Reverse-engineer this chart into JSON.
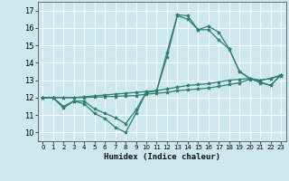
{
  "xlabel": "Humidex (Indice chaleur)",
  "bg_color": "#cce8ec",
  "grid_color": "#ffffff",
  "line_color": "#2e7d6e",
  "xlim": [
    -0.5,
    23.5
  ],
  "ylim": [
    9.5,
    17.5
  ],
  "yticks": [
    10,
    11,
    12,
    13,
    14,
    15,
    16,
    17
  ],
  "xticks": [
    0,
    1,
    2,
    3,
    4,
    5,
    6,
    7,
    8,
    9,
    10,
    11,
    12,
    13,
    14,
    15,
    16,
    17,
    18,
    19,
    20,
    21,
    22,
    23
  ],
  "series": [
    {
      "x": [
        0,
        1,
        2,
        3,
        4,
        5,
        6,
        7,
        8,
        9,
        10,
        11,
        12,
        13,
        14,
        15,
        16,
        17,
        18,
        19,
        20,
        21,
        22,
        23
      ],
      "y": [
        12.0,
        12.0,
        11.4,
        11.8,
        11.65,
        11.1,
        10.8,
        10.3,
        10.0,
        11.1,
        12.3,
        12.4,
        14.6,
        16.75,
        16.7,
        15.9,
        16.1,
        15.75,
        14.8,
        13.5,
        13.1,
        12.85,
        12.7,
        13.3
      ]
    },
    {
      "x": [
        0,
        1,
        2,
        3,
        4,
        5,
        6,
        7,
        8,
        9,
        10,
        11,
        12,
        13,
        14,
        15,
        16,
        17,
        18,
        19,
        20,
        21,
        22,
        23
      ],
      "y": [
        12.0,
        12.0,
        11.5,
        11.8,
        11.8,
        11.35,
        11.1,
        10.85,
        10.5,
        11.3,
        12.3,
        12.4,
        14.35,
        16.7,
        16.5,
        15.9,
        15.9,
        15.3,
        14.8,
        13.5,
        13.1,
        12.9,
        12.7,
        13.3
      ]
    },
    {
      "x": [
        0,
        1,
        2,
        3,
        4,
        5,
        6,
        7,
        8,
        9,
        10,
        11,
        12,
        13,
        14,
        15,
        16,
        17,
        18,
        19,
        20,
        21,
        22,
        23
      ],
      "y": [
        12.0,
        12.0,
        12.0,
        12.0,
        12.05,
        12.1,
        12.15,
        12.2,
        12.25,
        12.3,
        12.35,
        12.4,
        12.5,
        12.6,
        12.7,
        12.75,
        12.8,
        12.9,
        13.0,
        13.05,
        13.1,
        13.0,
        13.1,
        13.3
      ]
    },
    {
      "x": [
        0,
        1,
        2,
        3,
        4,
        5,
        6,
        7,
        8,
        9,
        10,
        11,
        12,
        13,
        14,
        15,
        16,
        17,
        18,
        19,
        20,
        21,
        22,
        23
      ],
      "y": [
        12.0,
        12.0,
        12.0,
        12.0,
        12.0,
        12.02,
        12.05,
        12.07,
        12.1,
        12.12,
        12.2,
        12.25,
        12.3,
        12.4,
        12.45,
        12.5,
        12.55,
        12.65,
        12.75,
        12.85,
        13.05,
        13.0,
        13.1,
        13.25
      ]
    }
  ]
}
